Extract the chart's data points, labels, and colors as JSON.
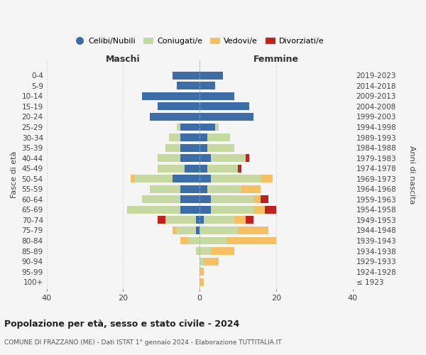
{
  "age_groups": [
    "100+",
    "95-99",
    "90-94",
    "85-89",
    "80-84",
    "75-79",
    "70-74",
    "65-69",
    "60-64",
    "55-59",
    "50-54",
    "45-49",
    "40-44",
    "35-39",
    "30-34",
    "25-29",
    "20-24",
    "15-19",
    "10-14",
    "5-9",
    "0-4"
  ],
  "birth_years": [
    "≤ 1923",
    "1924-1928",
    "1929-1933",
    "1934-1938",
    "1939-1943",
    "1944-1948",
    "1949-1953",
    "1954-1958",
    "1959-1963",
    "1964-1968",
    "1969-1973",
    "1974-1978",
    "1979-1983",
    "1984-1988",
    "1989-1993",
    "1994-1998",
    "1999-2003",
    "2004-2008",
    "2009-2013",
    "2014-2018",
    "2019-2023"
  ],
  "maschi": {
    "celibi": [
      0,
      0,
      0,
      0,
      0,
      1,
      1,
      5,
      5,
      5,
      7,
      4,
      5,
      5,
      5,
      5,
      13,
      11,
      15,
      6,
      7
    ],
    "coniugati": [
      0,
      0,
      0,
      1,
      3,
      5,
      8,
      14,
      10,
      8,
      10,
      7,
      6,
      4,
      3,
      1,
      0,
      0,
      0,
      0,
      0
    ],
    "vedovi": [
      0,
      0,
      0,
      0,
      2,
      1,
      0,
      0,
      0,
      0,
      1,
      0,
      0,
      0,
      0,
      0,
      0,
      0,
      0,
      0,
      0
    ],
    "divorziati": [
      0,
      0,
      0,
      0,
      0,
      0,
      2,
      0,
      0,
      0,
      0,
      0,
      0,
      0,
      0,
      0,
      0,
      0,
      0,
      0,
      0
    ]
  },
  "femmine": {
    "nubili": [
      0,
      0,
      0,
      0,
      0,
      0,
      1,
      3,
      3,
      2,
      3,
      2,
      3,
      2,
      2,
      4,
      14,
      13,
      9,
      4,
      6
    ],
    "coniugate": [
      0,
      0,
      1,
      3,
      7,
      10,
      8,
      11,
      11,
      9,
      13,
      8,
      9,
      7,
      6,
      1,
      0,
      0,
      0,
      0,
      0
    ],
    "vedove": [
      1,
      1,
      4,
      6,
      13,
      8,
      3,
      3,
      2,
      5,
      3,
      0,
      0,
      0,
      0,
      0,
      0,
      0,
      0,
      0,
      0
    ],
    "divorziate": [
      0,
      0,
      0,
      0,
      0,
      0,
      2,
      3,
      2,
      0,
      0,
      1,
      1,
      0,
      0,
      0,
      0,
      0,
      0,
      0,
      0
    ]
  },
  "colors": {
    "celibi_nubili": "#3d6da8",
    "coniugati": "#c5d9a0",
    "vedovi": "#f5c060",
    "divorziati": "#c0221e"
  },
  "xlim": 40,
  "title": "Popolazione per età, sesso e stato civile - 2024",
  "subtitle": "COMUNE DI FRAZZANÒ (ME) - Dati ISTAT 1° gennaio 2024 - Elaborazione TUTTITALIA.IT",
  "ylabel_left": "Fasce di età",
  "ylabel_right": "Anni di nascita",
  "legend_labels": [
    "Celibi/Nubili",
    "Coniugati/e",
    "Vedovi/e",
    "Divorziati/e"
  ],
  "maschi_label": "Maschi",
  "femmine_label": "Femmine",
  "bg_color": "#f5f5f5",
  "bar_height": 0.75
}
